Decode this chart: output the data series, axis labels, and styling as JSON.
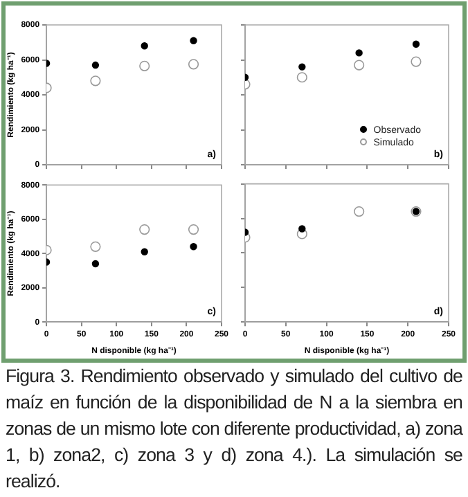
{
  "chart_data": [
    {
      "type": "scatter",
      "ylabel": "Rendimiento (kg ha⁻¹)",
      "x": [
        0,
        70,
        140,
        210
      ],
      "xlim": [
        0,
        250
      ],
      "xticks": [
        0,
        50,
        100,
        150,
        200,
        250
      ],
      "ylim": [
        0,
        8000
      ],
      "yticks": [
        0,
        2000,
        4000,
        6000,
        8000
      ],
      "tick_labels": "y",
      "marker": "circle",
      "legend": false,
      "annotations": [
        "a)"
      ],
      "series": [
        {
          "color": "#000000",
          "values": [
            5800,
            5700,
            6800,
            7100
          ]
        },
        {
          "color": "#999999",
          "values": [
            4400,
            4800,
            5650,
            5750
          ]
        }
      ]
    },
    {
      "type": "scatter",
      "x": [
        0,
        70,
        140,
        210
      ],
      "xlim": [
        0,
        250
      ],
      "xticks": [
        0,
        50,
        100,
        150,
        200,
        250
      ],
      "ylim": [
        0,
        8000
      ],
      "yticks": [
        0,
        2000,
        4000,
        6000,
        8000
      ],
      "tick_labels": false,
      "marker": "circle",
      "legend": "bottom right",
      "annotations": [
        "b)"
      ],
      "series": [
        {
          "name": "Observado",
          "color": "#000000",
          "values": [
            5000,
            5600,
            6400,
            6900
          ]
        },
        {
          "name": "Simulado",
          "color": "#999999",
          "values": [
            4600,
            5000,
            5700,
            5900
          ]
        }
      ]
    },
    {
      "type": "scatter",
      "ylabel": "Rendimiento (kg ha⁻¹)",
      "xlabel": "N disponible (kg ha⁻¹)",
      "x": [
        0,
        70,
        140,
        210
      ],
      "xlim": [
        0,
        250
      ],
      "xticks": [
        0,
        50,
        100,
        150,
        200,
        250
      ],
      "ylim": [
        0,
        8000
      ],
      "yticks": [
        0,
        2000,
        4000,
        6000,
        8000
      ],
      "marker": "circle",
      "legend": false,
      "annotations": [
        "c)"
      ],
      "series": [
        {
          "color": "#000000",
          "values": [
            3500,
            3400,
            4100,
            4400
          ]
        },
        {
          "color": "#999999",
          "values": [
            4200,
            4400,
            5400,
            5400
          ]
        }
      ]
    },
    {
      "type": "scatter",
      "xlabel": "N disponible (kg ha⁻¹)",
      "x": [
        0,
        70,
        140,
        210
      ],
      "xlim": [
        0,
        250
      ],
      "xticks": [
        0,
        50,
        100,
        150,
        200,
        250
      ],
      "ylim": [
        0,
        8000
      ],
      "yticks": [
        0,
        2000,
        4000,
        6000,
        8000
      ],
      "tick_labels": "x",
      "marker": "circle",
      "legend": false,
      "annotations": [
        "d)",
        "Figura 3. Rendimiento observado y simulado del cultivo de maíz en función de la disponibilidad de N a la siembra en zonas de un mismo lote con diferente productividad, a) zona 1, b) zona2, c) zona 3 y d) zona 4.). La simulación se realizó."
      ],
      "series": [
        {
          "color": "#000000",
          "values": [
            5200,
            5400,
            null,
            6400
          ]
        },
        {
          "color": "#999999",
          "values": [
            4900,
            5100,
            6400,
            6400
          ]
        }
      ]
    }
  ]
}
